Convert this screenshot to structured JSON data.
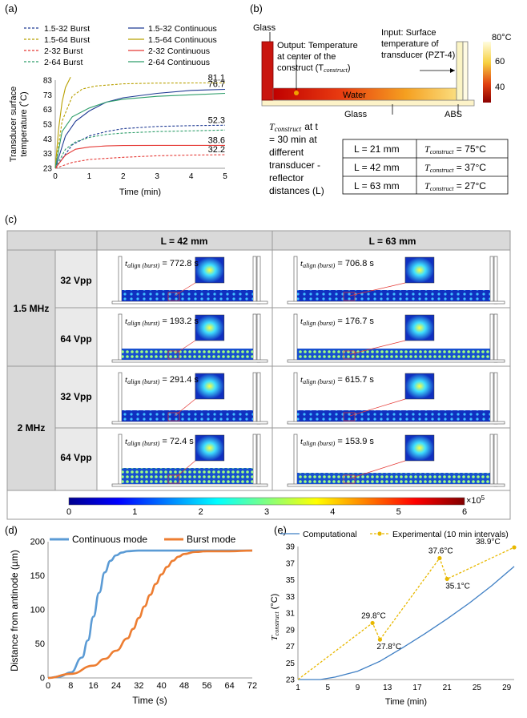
{
  "panel_labels": {
    "a": "(a)",
    "b": "(b)",
    "c": "(c)",
    "d": "(d)",
    "e": "(e)"
  },
  "colors": {
    "blue1": "#1f3a93",
    "olive": "#b8a000",
    "red": "#e53935",
    "teal": "#2e9e6a",
    "d_blue": "#5b9bd5",
    "d_orange": "#ed7d31",
    "e_blue": "#3f7fc4",
    "e_yellow": "#e8b800"
  },
  "chart_data": [
    {
      "id": "a",
      "type": "line",
      "title": "",
      "xlabel": "Time (min)",
      "ylabel": "Transducer surface temperature (˚C)",
      "ylabel_lines": [
        "Transducer surface",
        "temperature (˚C)"
      ],
      "xlim": [
        0,
        5
      ],
      "ylim": [
        23,
        83
      ],
      "xticks": [
        "0",
        "1",
        "2",
        "3",
        "4",
        "5"
      ],
      "yticks": [
        "23",
        "33",
        "43",
        "53",
        "63",
        "73",
        "83"
      ],
      "legend": [
        "1.5-32 Burst",
        "1.5-64 Burst",
        "2-32 Burst",
        "2-64 Burst",
        "1.5-32 Continuous",
        "1.5-64 Continuous",
        "2-32 Continuous",
        "2-64 Continuous"
      ],
      "series": [
        {
          "name": "1.5-32 Burst",
          "style": "dashed",
          "color": "#1f3a93",
          "x": [
            0,
            0.5,
            1,
            1.5,
            2,
            3,
            4,
            5
          ],
          "values": [
            23,
            39,
            45,
            48,
            50,
            51.5,
            52,
            52.3
          ]
        },
        {
          "name": "1.5-64 Burst",
          "style": "dashed",
          "color": "#b8a000",
          "x": [
            0,
            0.2,
            0.5,
            0.8,
            1.2,
            2,
            3,
            4,
            5
          ],
          "values": [
            23,
            55,
            72,
            77,
            79,
            80.5,
            81,
            81.1,
            81.1
          ]
        },
        {
          "name": "2-32 Burst",
          "style": "dashed",
          "color": "#e53935",
          "x": [
            0,
            0.5,
            1,
            2,
            3,
            4,
            5
          ],
          "values": [
            23,
            27,
            29,
            30.5,
            31.5,
            32,
            32.2
          ]
        },
        {
          "name": "2-64 Burst",
          "style": "dashed",
          "color": "#2e9e6a",
          "x": [
            0,
            0.3,
            0.6,
            1,
            1.5,
            2,
            3,
            4,
            5
          ],
          "values": [
            23,
            36,
            41,
            44,
            46,
            47,
            48,
            48.5,
            49
          ]
        },
        {
          "name": "1.5-32 Continuous",
          "style": "solid",
          "color": "#1f3a93",
          "x": [
            0,
            0.3,
            0.6,
            1,
            1.5,
            2,
            3,
            4,
            5
          ],
          "values": [
            23,
            45,
            55,
            62,
            68,
            71,
            74,
            76,
            76.7
          ]
        },
        {
          "name": "1.5-64 Continuous",
          "style": "solid",
          "color": "#b8a000",
          "x": [
            0,
            0.1,
            0.2,
            0.3,
            0.45
          ],
          "values": [
            23,
            50,
            68,
            78,
            85
          ]
        },
        {
          "name": "2-32 Continuous",
          "style": "solid",
          "color": "#e53935",
          "x": [
            0,
            0.3,
            0.6,
            1,
            1.5,
            2,
            3,
            4,
            5
          ],
          "values": [
            23,
            32,
            36,
            37.5,
            38.2,
            38.5,
            38.6,
            38.6,
            38.6
          ]
        },
        {
          "name": "2-64 Continuous",
          "style": "solid",
          "color": "#2e9e6a",
          "x": [
            0,
            0.2,
            0.5,
            1,
            1.5,
            2,
            3,
            4,
            5
          ],
          "values": [
            23,
            48,
            58,
            64,
            68,
            70,
            72,
            73,
            74
          ]
        }
      ],
      "annotations": [
        "81.1",
        "76.7",
        "52.3",
        "38.6",
        "32.2"
      ]
    },
    {
      "id": "d",
      "type": "line",
      "xlabel": "Time (s)",
      "ylabel": "Distance from antinode (µm)",
      "xlim": [
        0,
        72
      ],
      "ylim": [
        0,
        200
      ],
      "xticks": [
        "0",
        "8",
        "16",
        "24",
        "32",
        "40",
        "48",
        "56",
        "64",
        "72"
      ],
      "yticks": [
        "0",
        "50",
        "100",
        "150",
        "200"
      ],
      "legend": [
        "Continuous mode",
        "Burst mode"
      ],
      "series": [
        {
          "name": "Continuous mode",
          "color": "#5b9bd5",
          "x": [
            0,
            4,
            8,
            12,
            14,
            16,
            18,
            20,
            22,
            24,
            26,
            28,
            32,
            40,
            48,
            72
          ],
          "values": [
            0,
            2,
            8,
            30,
            55,
            90,
            125,
            155,
            172,
            180,
            184,
            186,
            187,
            187,
            187,
            187
          ]
        },
        {
          "name": "Burst mode",
          "color": "#ed7d31",
          "x": [
            0,
            8,
            16,
            20,
            24,
            28,
            30,
            32,
            34,
            36,
            38,
            40,
            42,
            44,
            46,
            48,
            52,
            56,
            64,
            72
          ],
          "values": [
            0,
            6,
            18,
            28,
            40,
            58,
            72,
            88,
            105,
            122,
            138,
            152,
            163,
            172,
            178,
            182,
            185,
            186,
            186,
            187
          ]
        }
      ]
    },
    {
      "id": "e",
      "type": "line",
      "xlabel": "Time (min)",
      "ylabel": "T_construct (°C)",
      "xlim": [
        1,
        30
      ],
      "ylim": [
        23,
        39
      ],
      "xticks": [
        "1",
        "5",
        "9",
        "13",
        "17",
        "21",
        "25",
        "29"
      ],
      "yticks": [
        "23",
        "25",
        "27",
        "29",
        "31",
        "33",
        "35",
        "37",
        "39"
      ],
      "legend": [
        "Computational",
        "Experimental (10 min intervals)"
      ],
      "series": [
        {
          "name": "Computational",
          "color": "#3f7fc4",
          "x": [
            1,
            4,
            6,
            9,
            12,
            15,
            18,
            21,
            24,
            27,
            30
          ],
          "values": [
            23,
            23,
            23.3,
            24,
            25.2,
            26.8,
            28.5,
            30.3,
            32.2,
            34.3,
            36.6
          ]
        },
        {
          "name": "Experimental (10 min intervals)",
          "color": "#e8b800",
          "x": [
            1,
            11,
            12,
            20,
            21,
            30
          ],
          "values": [
            23,
            29.8,
            27.8,
            37.6,
            35.1,
            38.9
          ]
        }
      ],
      "annotations": [
        "29.8°C",
        "27.8°C",
        "37.6°C",
        "35.1°C",
        "38.9°C"
      ]
    }
  ],
  "b": {
    "glass_top": "Glass",
    "output_lines": [
      "Output: Temperature",
      "at center of the",
      "construct (T"
    ],
    "output_sub": "construct",
    "input_lines": [
      "Input: Surface",
      "temperature of",
      "transducer (PZT-4)"
    ],
    "water": "Water",
    "glass_bottom": "Glass",
    "abs": "ABS",
    "scale_title": "80°C",
    "scale_ticks": [
      "60",
      "40"
    ],
    "caption_lines": [
      "at t",
      "= 30 min at",
      "different",
      "transducer -",
      "reflector",
      "distances (L)"
    ],
    "caption_var": "T",
    "caption_sub": "construct",
    "table": [
      {
        "L": "L = 21 mm",
        "T": "T",
        "sub": "construct",
        "val": " = 75°C"
      },
      {
        "L": "L = 42 mm",
        "T": "T",
        "sub": "construct",
        "val": " = 37°C"
      },
      {
        "L": "L = 63 mm",
        "T": "T",
        "sub": "construct",
        "val": " = 27°C"
      }
    ]
  },
  "c": {
    "col_headers": [
      "L = 42 mm",
      "L = 63 mm"
    ],
    "freq": [
      "1.5 MHz",
      "2 MHz"
    ],
    "volt": [
      "32 Vpp",
      "64 Vpp",
      "32 Vpp",
      "64 Vpp"
    ],
    "cells": [
      [
        "t",
        "align (burst)",
        " = 772.8 s",
        " = 706.8 s"
      ],
      [
        "t",
        "align (burst)",
        " = 193.2 s",
        " = 176.7 s"
      ],
      [
        "t",
        "align (burst)",
        " = 291.4 s",
        " = 615.7 s"
      ],
      [
        "t",
        "align (burst)",
        " = 72.4 s",
        " = 153.9 s"
      ]
    ],
    "cell_text": [
      "t_align (burst) = 772.8 s",
      "t_align (burst) = 706.8 s",
      "t_align (burst) = 193.2 s",
      "t_align (burst) = 176.7 s",
      "t_align (burst) = 291.4 s",
      "t_align (burst) = 615.7 s",
      "t_align (burst) = 72.4 s",
      "t_align (burst) = 153.9 s"
    ],
    "colorbar_ticks": [
      "0",
      "1",
      "2",
      "3",
      "4",
      "5",
      "6"
    ],
    "colorbar_exp": "×10",
    "colorbar_exp_sup": "5"
  }
}
